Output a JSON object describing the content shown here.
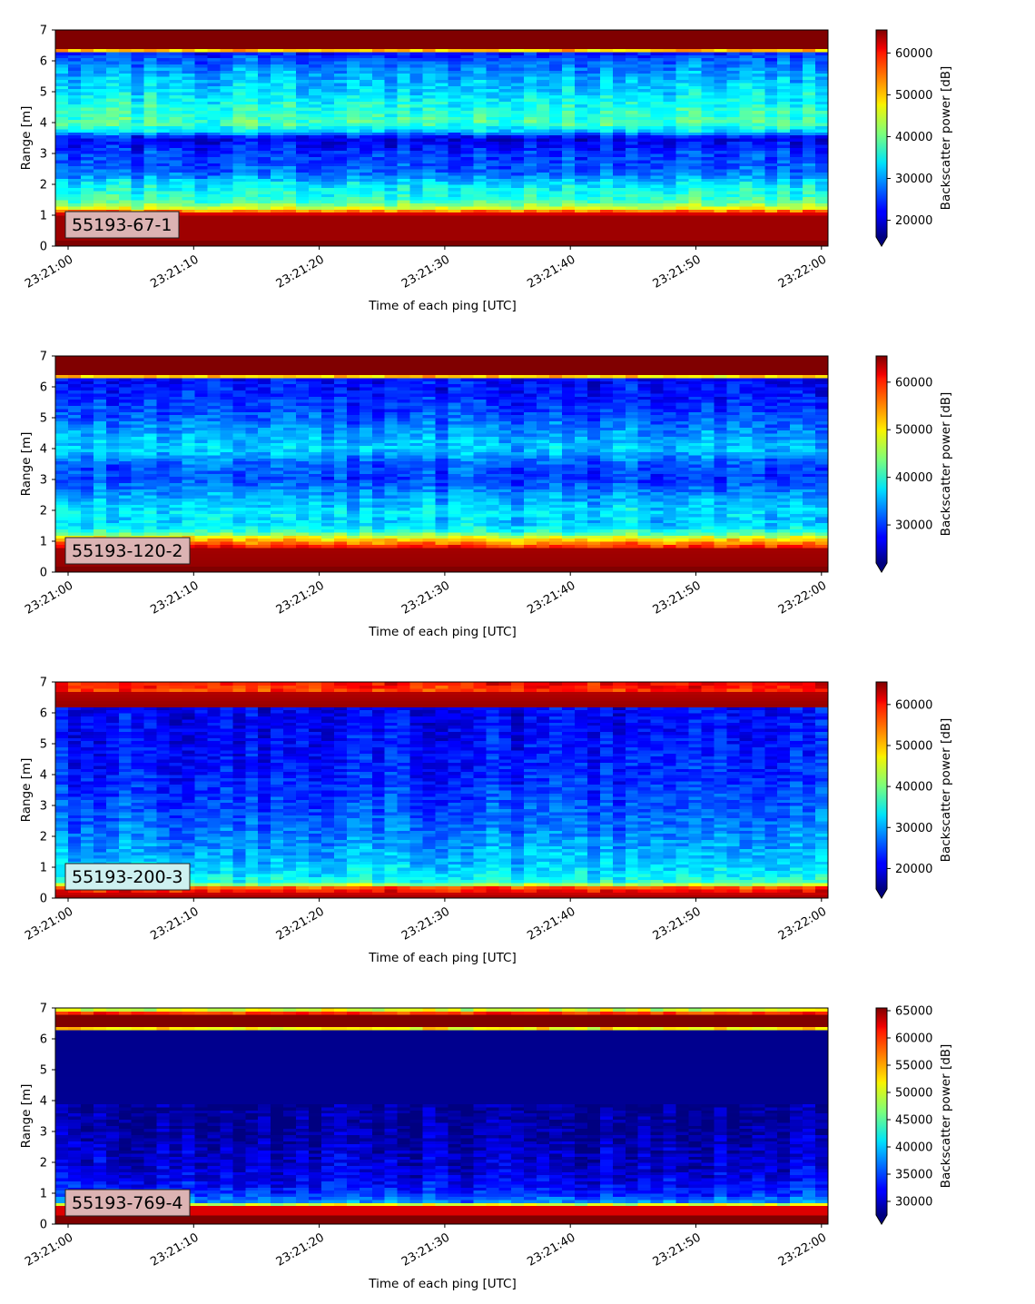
{
  "chart_data": [
    {
      "type": "heatmap",
      "badge": "55193-67-1",
      "badge_color": "#dcb3b3",
      "xlabel": "Time of each ping [UTC]",
      "ylabel": "Range [m]",
      "colorbar_label": "Backscatter power [dB]",
      "colormap": "jet",
      "x_ticks": [
        "23:21:00",
        "23:21:10",
        "23:21:20",
        "23:21:30",
        "23:21:40",
        "23:21:50",
        "23:22:00"
      ],
      "ylim": [
        0,
        7
      ],
      "y_ticks": [
        0,
        1,
        2,
        3,
        4,
        5,
        6,
        7
      ],
      "clim": [
        16000,
        65500
      ],
      "colorbar_ticks": [
        20000,
        30000,
        40000,
        50000,
        60000
      ],
      "colorbar_extend": "min",
      "grid": false,
      "profile": [
        {
          "range": 0.0,
          "value": 65500
        },
        {
          "range": 0.2,
          "value": 65500
        },
        {
          "range": 0.25,
          "value": 64000
        },
        {
          "range": 1.0,
          "value": 64000
        },
        {
          "range": 1.1,
          "value": 58000
        },
        {
          "range": 1.25,
          "value": 45000
        },
        {
          "range": 1.5,
          "value": 37000
        },
        {
          "range": 2.0,
          "value": 34000
        },
        {
          "range": 2.4,
          "value": 27000
        },
        {
          "range": 3.0,
          "value": 25000
        },
        {
          "range": 3.5,
          "value": 21000
        },
        {
          "range": 3.75,
          "value": 33000
        },
        {
          "range": 4.0,
          "value": 38000
        },
        {
          "range": 4.5,
          "value": 36000
        },
        {
          "range": 5.0,
          "value": 33000
        },
        {
          "range": 5.5,
          "value": 31000
        },
        {
          "range": 6.0,
          "value": 27000
        },
        {
          "range": 6.3,
          "value": 23000
        },
        {
          "range": 6.38,
          "value": 65500
        },
        {
          "range": 7.0,
          "value": 65500
        }
      ]
    },
    {
      "type": "heatmap",
      "badge": "55193-120-2",
      "badge_color": "#dcb3b3",
      "xlabel": "Time of each ping [UTC]",
      "ylabel": "Range [m]",
      "colorbar_label": "Backscatter power [dB]",
      "colormap": "jet",
      "x_ticks": [
        "23:21:00",
        "23:21:10",
        "23:21:20",
        "23:21:30",
        "23:21:40",
        "23:21:50",
        "23:22:00"
      ],
      "ylim": [
        0,
        7
      ],
      "y_ticks": [
        0,
        1,
        2,
        3,
        4,
        5,
        6,
        7
      ],
      "clim": [
        22000,
        65500
      ],
      "colorbar_ticks": [
        30000,
        40000,
        50000,
        60000
      ],
      "colorbar_extend": "min",
      "grid": false,
      "profile": [
        {
          "range": 0.0,
          "value": 65500
        },
        {
          "range": 0.2,
          "value": 65500
        },
        {
          "range": 0.25,
          "value": 64500
        },
        {
          "range": 0.75,
          "value": 64000
        },
        {
          "range": 0.9,
          "value": 56000
        },
        {
          "range": 1.1,
          "value": 50000
        },
        {
          "range": 1.3,
          "value": 40000
        },
        {
          "range": 1.6,
          "value": 36000
        },
        {
          "range": 2.0,
          "value": 37000
        },
        {
          "range": 2.5,
          "value": 34000
        },
        {
          "range": 3.0,
          "value": 30000
        },
        {
          "range": 3.5,
          "value": 31000
        },
        {
          "range": 4.0,
          "value": 36000
        },
        {
          "range": 4.5,
          "value": 34000
        },
        {
          "range": 5.0,
          "value": 31000
        },
        {
          "range": 5.5,
          "value": 29000
        },
        {
          "range": 6.0,
          "value": 28000
        },
        {
          "range": 6.3,
          "value": 27000
        },
        {
          "range": 6.38,
          "value": 65500
        },
        {
          "range": 7.0,
          "value": 65500
        }
      ]
    },
    {
      "type": "heatmap",
      "badge": "55193-200-3",
      "badge_color": "#cdf0f0",
      "xlabel": "Time of each ping [UTC]",
      "ylabel": "Range [m]",
      "colorbar_label": "Backscatter power [dB]",
      "colormap": "jet",
      "x_ticks": [
        "23:21:00",
        "23:21:10",
        "23:21:20",
        "23:21:30",
        "23:21:40",
        "23:21:50",
        "23:22:00"
      ],
      "ylim": [
        0,
        7
      ],
      "y_ticks": [
        0,
        1,
        2,
        3,
        4,
        5,
        6,
        7
      ],
      "clim": [
        15000,
        65500
      ],
      "colorbar_ticks": [
        20000,
        30000,
        40000,
        50000,
        60000
      ],
      "colorbar_extend": "min",
      "grid": false,
      "profile": [
        {
          "range": 0.0,
          "value": 64000
        },
        {
          "range": 0.15,
          "value": 62000
        },
        {
          "range": 0.35,
          "value": 55000
        },
        {
          "range": 0.5,
          "value": 36000
        },
        {
          "range": 0.8,
          "value": 33000
        },
        {
          "range": 1.2,
          "value": 31000
        },
        {
          "range": 2.0,
          "value": 28000
        },
        {
          "range": 3.0,
          "value": 25000
        },
        {
          "range": 4.0,
          "value": 23000
        },
        {
          "range": 5.0,
          "value": 22000
        },
        {
          "range": 6.0,
          "value": 21000
        },
        {
          "range": 6.18,
          "value": 21000
        },
        {
          "range": 6.22,
          "value": 64500
        },
        {
          "range": 6.65,
          "value": 63000
        },
        {
          "range": 6.7,
          "value": 56000
        },
        {
          "range": 6.85,
          "value": 58000
        },
        {
          "range": 7.0,
          "value": 59000
        }
      ]
    },
    {
      "type": "heatmap",
      "badge": "55193-769-4",
      "badge_color": "#dcb3b3",
      "xlabel": "Time of each ping [UTC]",
      "ylabel": "Range [m]",
      "colorbar_label": "Backscatter power [dB]",
      "colormap": "jet",
      "x_ticks": [
        "23:21:00",
        "23:21:10",
        "23:21:20",
        "23:21:30",
        "23:21:40",
        "23:21:50",
        "23:22:00"
      ],
      "ylim": [
        0,
        7
      ],
      "y_ticks": [
        0,
        1,
        2,
        3,
        4,
        5,
        6,
        7
      ],
      "clim": [
        27500,
        65500
      ],
      "colorbar_ticks": [
        30000,
        35000,
        40000,
        45000,
        50000,
        55000,
        60000,
        65000
      ],
      "colorbar_extend": "min",
      "grid": false,
      "profile": [
        {
          "range": 0.0,
          "value": 65500
        },
        {
          "range": 0.25,
          "value": 65500
        },
        {
          "range": 0.3,
          "value": 62000
        },
        {
          "range": 0.6,
          "value": 62000
        },
        {
          "range": 0.7,
          "value": 38000
        },
        {
          "range": 1.0,
          "value": 34000
        },
        {
          "range": 1.5,
          "value": 31500
        },
        {
          "range": 2.0,
          "value": 30500
        },
        {
          "range": 3.0,
          "value": 29000
        },
        {
          "range": 4.0,
          "value": 28200
        },
        {
          "range": 6.3,
          "value": 28000
        },
        {
          "range": 6.38,
          "value": 65500
        },
        {
          "range": 6.8,
          "value": 65500
        },
        {
          "range": 6.9,
          "value": 52000
        },
        {
          "range": 7.0,
          "value": 48000
        }
      ]
    }
  ]
}
